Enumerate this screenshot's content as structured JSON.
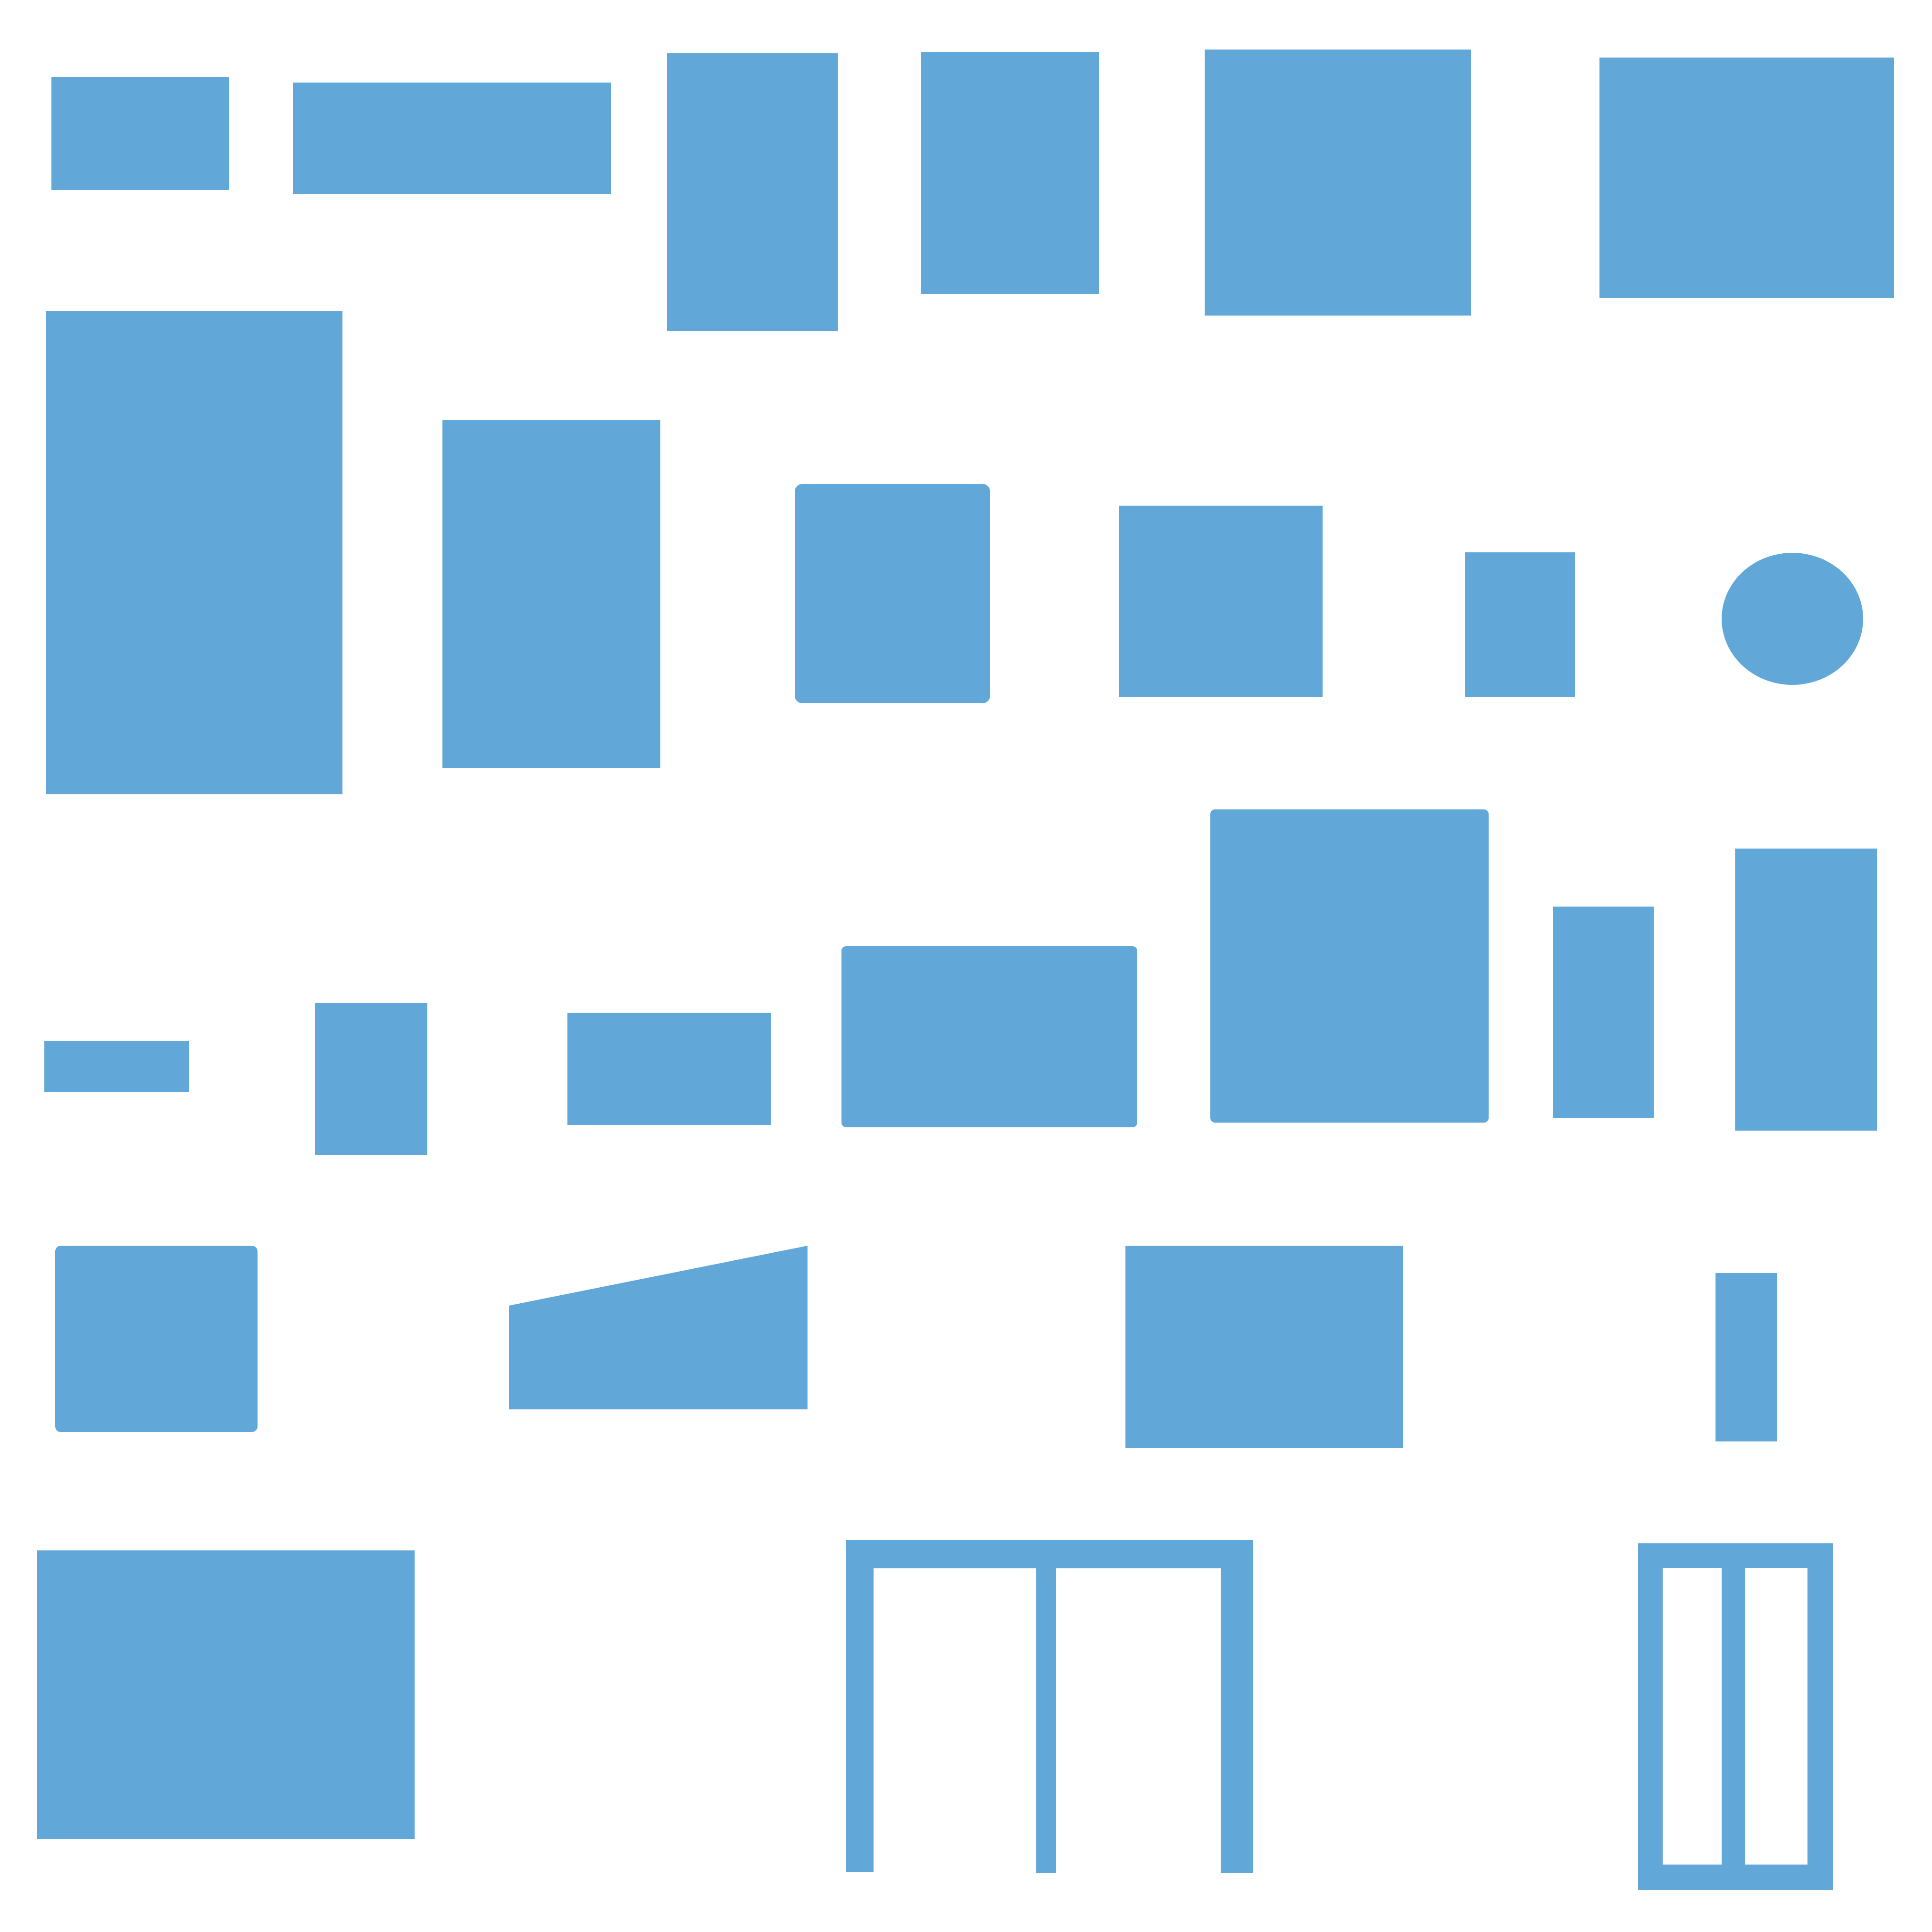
{
  "canvas": {
    "background": "#ffffff",
    "shape_color": "#61a7d8"
  },
  "shapes": [
    {
      "name": "shape-rect-r1-1",
      "kind": "rect"
    },
    {
      "name": "shape-rect-r1-2",
      "kind": "rect"
    },
    {
      "name": "shape-rect-r1-3",
      "kind": "rect"
    },
    {
      "name": "shape-rect-r1-4",
      "kind": "rect"
    },
    {
      "name": "shape-rect-r1-5",
      "kind": "rect"
    },
    {
      "name": "shape-rect-r1-6",
      "kind": "rect"
    },
    {
      "name": "shape-rect-r2-1",
      "kind": "rect"
    },
    {
      "name": "shape-rect-r2-2",
      "kind": "rect"
    },
    {
      "name": "shape-rect-r2-3",
      "kind": "rounded-rect"
    },
    {
      "name": "shape-rect-r2-4",
      "kind": "rect"
    },
    {
      "name": "shape-rect-r2-5",
      "kind": "rect"
    },
    {
      "name": "shape-ellipse-r2-6",
      "kind": "ellipse"
    },
    {
      "name": "shape-rect-r3-1",
      "kind": "rect"
    },
    {
      "name": "shape-rect-r3-2",
      "kind": "rect"
    },
    {
      "name": "shape-rect-r3-3",
      "kind": "rect"
    },
    {
      "name": "shape-rect-r3-4",
      "kind": "rounded-rect"
    },
    {
      "name": "shape-rect-r3-5",
      "kind": "notched-rect"
    },
    {
      "name": "shape-rect-r3-6",
      "kind": "rect"
    },
    {
      "name": "shape-rect-r3-7",
      "kind": "rect"
    },
    {
      "name": "shape-rect-r4-1",
      "kind": "rounded-rect"
    },
    {
      "name": "shape-trapezoid-r4-2",
      "kind": "polygon"
    },
    {
      "name": "shape-rect-r4-3",
      "kind": "rect"
    },
    {
      "name": "shape-rect-r4-4",
      "kind": "rect"
    },
    {
      "name": "shape-rect-r5-1",
      "kind": "rect"
    },
    {
      "name": "shape-frame-r5-2",
      "kind": "frame"
    },
    {
      "name": "shape-frame-r5-3",
      "kind": "frame"
    }
  ]
}
